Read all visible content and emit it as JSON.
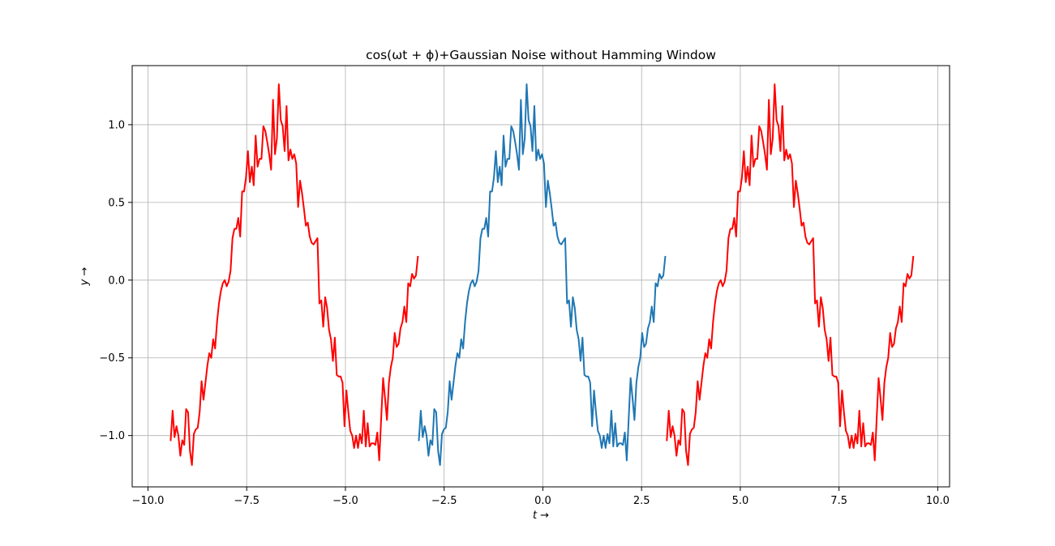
{
  "chart_data": {
    "type": "line",
    "title": "cos(ωt + ϕ)+Gaussian Noise without Hamming Window",
    "xlabel": "t →",
    "ylabel": "y →",
    "xlim": [
      -10.4,
      10.3
    ],
    "ylim": [
      -1.33,
      1.38
    ],
    "x_ticks": [
      -10.0,
      -7.5,
      -5.0,
      -2.5,
      0.0,
      2.5,
      5.0,
      7.5,
      10.0
    ],
    "x_tick_labels": [
      "−10.0",
      "−7.5",
      "−5.0",
      "−2.5",
      "0.0",
      "2.5",
      "5.0",
      "7.5",
      "10.0"
    ],
    "y_ticks": [
      -1.0,
      -0.5,
      0.0,
      0.5,
      1.0
    ],
    "y_tick_labels": [
      "−1.0",
      "−0.5",
      "0.0",
      "0.5",
      "1.0"
    ],
    "grid": true,
    "legend": "none",
    "series": [
      {
        "color": "#ff0000",
        "x_start": -9.425,
        "x_end": -3.165,
        "y": [
          -1.03,
          -0.84,
          -1.01,
          -0.94,
          -1.0,
          -1.13,
          -1.03,
          -1.06,
          -0.83,
          -0.85,
          -1.1,
          -1.19,
          -0.99,
          -0.96,
          -0.95,
          -0.85,
          -0.65,
          -0.77,
          -0.66,
          -0.55,
          -0.47,
          -0.5,
          -0.38,
          -0.44,
          -0.27,
          -0.15,
          -0.07,
          -0.02,
          0.0,
          -0.04,
          -0.01,
          0.06,
          0.27,
          0.33,
          0.33,
          0.4,
          0.28,
          0.57,
          0.57,
          0.66,
          0.83,
          0.63,
          0.73,
          0.61,
          0.93,
          0.73,
          0.78,
          0.78,
          0.99,
          0.96,
          0.89,
          0.81,
          0.71,
          1.16,
          0.81,
          0.91,
          1.26,
          1.03,
          0.99,
          0.83,
          1.12,
          0.77,
          0.84,
          0.78,
          0.81,
          0.75,
          0.47,
          0.64,
          0.56,
          0.46,
          0.35,
          0.37,
          0.28,
          0.24,
          0.23,
          0.25,
          0.27,
          -0.15,
          -0.13,
          -0.3,
          -0.11,
          -0.18,
          -0.32,
          -0.38,
          -0.52,
          -0.37,
          -0.61,
          -0.62,
          -0.62,
          -0.66,
          -0.94,
          -0.71,
          -0.85,
          -0.97,
          -1.0,
          -1.08,
          -1.0,
          -1.08,
          -0.99,
          -1.05,
          -0.84,
          -1.07,
          -0.92,
          -1.07,
          -1.05,
          -1.05,
          -1.06,
          -0.98,
          -1.16,
          -0.89,
          -0.63,
          -0.76,
          -0.9,
          -0.66,
          -0.56,
          -0.5,
          -0.34,
          -0.43,
          -0.41,
          -0.31,
          -0.27,
          -0.17,
          -0.27,
          -0.02,
          -0.04,
          0.04,
          0.01,
          0.03,
          0.15
        ]
      },
      {
        "color": "#1f77b4",
        "x_start": -3.14,
        "x_end": 3.1,
        "y": [
          -1.03,
          -0.84,
          -1.01,
          -0.94,
          -1.0,
          -1.13,
          -1.03,
          -1.06,
          -0.83,
          -0.85,
          -1.1,
          -1.19,
          -0.99,
          -0.96,
          -0.95,
          -0.85,
          -0.65,
          -0.77,
          -0.66,
          -0.55,
          -0.47,
          -0.5,
          -0.38,
          -0.44,
          -0.27,
          -0.15,
          -0.07,
          -0.02,
          0.0,
          -0.04,
          -0.01,
          0.06,
          0.27,
          0.33,
          0.33,
          0.4,
          0.28,
          0.57,
          0.57,
          0.66,
          0.83,
          0.63,
          0.73,
          0.61,
          0.93,
          0.73,
          0.78,
          0.78,
          0.99,
          0.96,
          0.89,
          0.81,
          0.71,
          1.16,
          0.81,
          0.91,
          1.26,
          1.03,
          0.99,
          0.83,
          1.12,
          0.77,
          0.84,
          0.78,
          0.81,
          0.75,
          0.47,
          0.64,
          0.56,
          0.46,
          0.35,
          0.37,
          0.28,
          0.24,
          0.23,
          0.25,
          0.27,
          -0.15,
          -0.13,
          -0.3,
          -0.11,
          -0.18,
          -0.32,
          -0.38,
          -0.52,
          -0.37,
          -0.61,
          -0.62,
          -0.62,
          -0.66,
          -0.94,
          -0.71,
          -0.85,
          -0.97,
          -1.0,
          -1.08,
          -1.0,
          -1.08,
          -0.99,
          -1.05,
          -0.84,
          -1.07,
          -0.92,
          -1.07,
          -1.05,
          -1.05,
          -1.06,
          -0.98,
          -1.16,
          -0.89,
          -0.63,
          -0.76,
          -0.9,
          -0.66,
          -0.56,
          -0.5,
          -0.34,
          -0.43,
          -0.41,
          -0.31,
          -0.27,
          -0.17,
          -0.27,
          -0.02,
          -0.04,
          0.04,
          0.01,
          0.03,
          0.15
        ]
      },
      {
        "color": "#ff0000",
        "x_start": 3.14,
        "x_end": 9.38,
        "y": [
          -1.03,
          -0.84,
          -1.01,
          -0.94,
          -1.0,
          -1.13,
          -1.03,
          -1.06,
          -0.83,
          -0.85,
          -1.1,
          -1.19,
          -0.99,
          -0.96,
          -0.95,
          -0.85,
          -0.65,
          -0.77,
          -0.66,
          -0.55,
          -0.47,
          -0.5,
          -0.38,
          -0.44,
          -0.27,
          -0.15,
          -0.07,
          -0.02,
          0.0,
          -0.04,
          -0.01,
          0.06,
          0.27,
          0.33,
          0.33,
          0.4,
          0.28,
          0.57,
          0.57,
          0.66,
          0.83,
          0.63,
          0.73,
          0.61,
          0.93,
          0.73,
          0.78,
          0.78,
          0.99,
          0.96,
          0.89,
          0.81,
          0.71,
          1.16,
          0.81,
          0.91,
          1.26,
          1.03,
          0.99,
          0.83,
          1.12,
          0.77,
          0.84,
          0.78,
          0.81,
          0.75,
          0.47,
          0.64,
          0.56,
          0.46,
          0.35,
          0.37,
          0.28,
          0.24,
          0.23,
          0.25,
          0.27,
          -0.15,
          -0.13,
          -0.3,
          -0.11,
          -0.18,
          -0.32,
          -0.38,
          -0.52,
          -0.37,
          -0.61,
          -0.62,
          -0.62,
          -0.66,
          -0.94,
          -0.71,
          -0.85,
          -0.97,
          -1.0,
          -1.08,
          -1.0,
          -1.08,
          -0.99,
          -1.05,
          -0.84,
          -1.07,
          -0.92,
          -1.07,
          -1.05,
          -1.05,
          -1.06,
          -0.98,
          -1.16,
          -0.89,
          -0.63,
          -0.76,
          -0.9,
          -0.66,
          -0.56,
          -0.5,
          -0.34,
          -0.43,
          -0.41,
          -0.31,
          -0.27,
          -0.17,
          -0.27,
          -0.02,
          -0.04,
          0.04,
          0.01,
          0.03,
          0.15
        ]
      }
    ]
  }
}
